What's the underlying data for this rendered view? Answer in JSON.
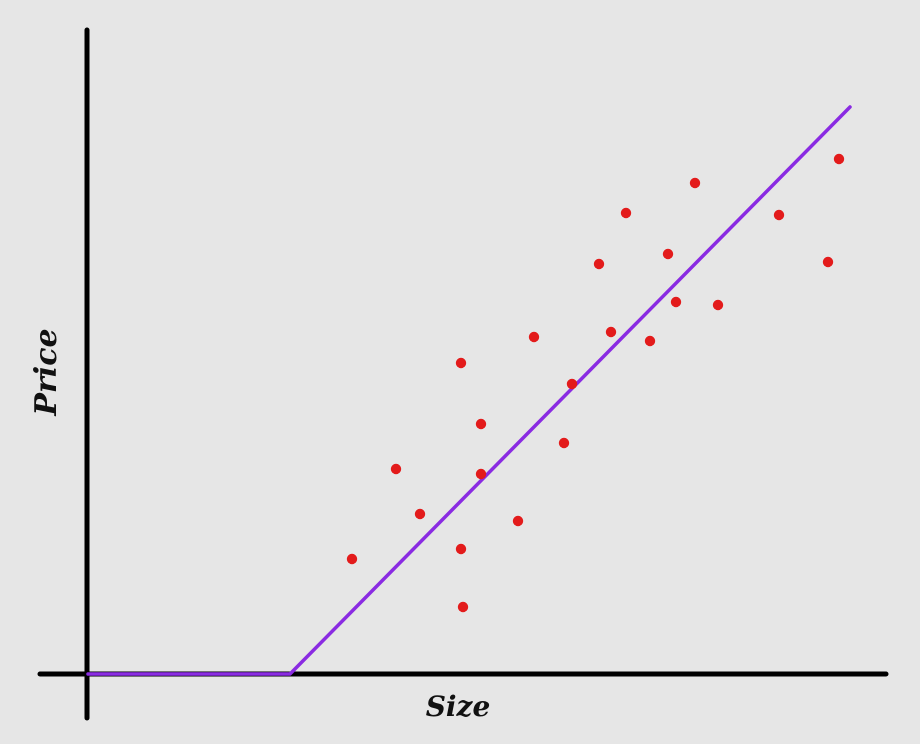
{
  "chart_data": {
    "type": "scatter",
    "title": "",
    "xlabel": "Size",
    "ylabel": "Price",
    "grid": false,
    "legend": "none",
    "series": [
      {
        "kind": "scatter",
        "color": "#e31b1b",
        "points": [
          [
            2.64,
            1.15
          ],
          [
            3.08,
            2.05
          ],
          [
            3.32,
            1.6
          ],
          [
            3.73,
            1.25
          ],
          [
            3.73,
            3.11
          ],
          [
            3.75,
            0.67
          ],
          [
            3.93,
            2.5
          ],
          [
            3.93,
            2.0
          ],
          [
            4.3,
            1.53
          ],
          [
            4.46,
            3.37
          ],
          [
            4.76,
            2.31
          ],
          [
            4.84,
            2.9
          ],
          [
            5.11,
            4.1
          ],
          [
            5.23,
            3.42
          ],
          [
            5.38,
            4.61
          ],
          [
            5.62,
            3.33
          ],
          [
            5.8,
            4.2
          ],
          [
            5.88,
            3.72
          ],
          [
            6.07,
            4.91
          ],
          [
            6.3,
            3.69
          ],
          [
            6.91,
            4.59
          ],
          [
            7.4,
            4.12
          ],
          [
            7.51,
            5.15
          ]
        ]
      },
      {
        "kind": "line",
        "color": "#8a2be2",
        "points": [
          [
            0,
            0
          ],
          [
            2.02,
            0
          ],
          [
            7.62,
            5.67
          ]
        ]
      }
    ]
  }
}
